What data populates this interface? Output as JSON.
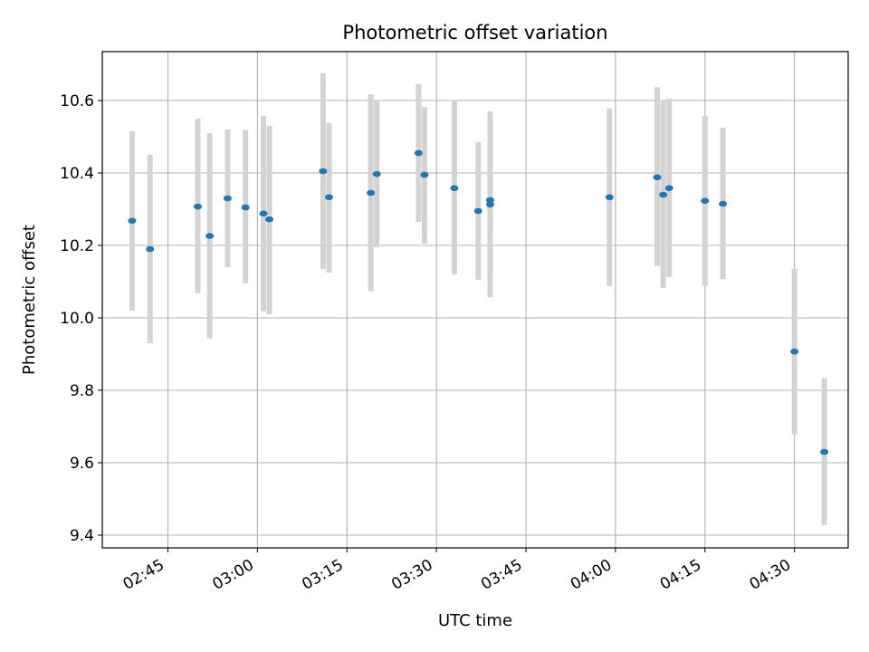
{
  "chart_data": {
    "type": "scatter",
    "title": "Photometric offset variation",
    "xlabel": "UTC time",
    "ylabel": "Photometric offset",
    "x_axis_kind": "time",
    "x_range": [
      "02:34",
      "04:39"
    ],
    "x_ticks": [
      "02:45",
      "03:00",
      "03:15",
      "03:30",
      "03:45",
      "04:00",
      "04:15",
      "04:30"
    ],
    "ylim": [
      9.365,
      10.735
    ],
    "y_ticks": [
      9.4,
      9.6,
      9.8,
      10.0,
      10.2,
      10.4,
      10.6
    ],
    "y_tick_labels": [
      "9.4",
      "9.6",
      "9.8",
      "10.0",
      "10.2",
      "10.4",
      "10.6"
    ],
    "grid": true,
    "point_color": "#1f77b4",
    "errorbar_color": "#d3d3d3",
    "points": [
      {
        "x": "02:39",
        "y": 10.268,
        "ymin": 10.02,
        "ymax": 10.515
      },
      {
        "x": "02:42",
        "y": 10.19,
        "ymin": 9.93,
        "ymax": 10.45
      },
      {
        "x": "02:50",
        "y": 10.307,
        "ymin": 10.068,
        "ymax": 10.55
      },
      {
        "x": "02:52",
        "y": 10.226,
        "ymin": 9.943,
        "ymax": 10.51
      },
      {
        "x": "02:55",
        "y": 10.33,
        "ymin": 10.14,
        "ymax": 10.52
      },
      {
        "x": "02:58",
        "y": 10.305,
        "ymin": 10.095,
        "ymax": 10.518
      },
      {
        "x": "03:01",
        "y": 10.288,
        "ymin": 10.018,
        "ymax": 10.558
      },
      {
        "x": "03:02",
        "y": 10.272,
        "ymin": 10.01,
        "ymax": 10.53
      },
      {
        "x": "03:11",
        "y": 10.405,
        "ymin": 10.135,
        "ymax": 10.675
      },
      {
        "x": "03:12",
        "y": 10.333,
        "ymin": 10.125,
        "ymax": 10.538
      },
      {
        "x": "03:19",
        "y": 10.345,
        "ymin": 10.073,
        "ymax": 10.617
      },
      {
        "x": "03:20",
        "y": 10.397,
        "ymin": 10.195,
        "ymax": 10.6
      },
      {
        "x": "03:27",
        "y": 10.455,
        "ymin": 10.265,
        "ymax": 10.645
      },
      {
        "x": "03:28",
        "y": 10.395,
        "ymin": 10.205,
        "ymax": 10.582
      },
      {
        "x": "03:33",
        "y": 10.358,
        "ymin": 10.12,
        "ymax": 10.6
      },
      {
        "x": "03:37",
        "y": 10.295,
        "ymin": 10.105,
        "ymax": 10.485
      },
      {
        "x": "03:39",
        "y": 10.313,
        "ymin": 10.057,
        "ymax": 10.57
      },
      {
        "x": "03:39",
        "y": 10.325,
        "ymin": 10.103,
        "ymax": 10.55
      },
      {
        "x": "03:59",
        "y": 10.333,
        "ymin": 10.088,
        "ymax": 10.578
      },
      {
        "x": "04:07",
        "y": 10.388,
        "ymin": 10.143,
        "ymax": 10.637
      },
      {
        "x": "04:08",
        "y": 10.34,
        "ymin": 10.083,
        "ymax": 10.6
      },
      {
        "x": "04:09",
        "y": 10.358,
        "ymin": 10.113,
        "ymax": 10.605
      },
      {
        "x": "04:15",
        "y": 10.323,
        "ymin": 10.088,
        "ymax": 10.558
      },
      {
        "x": "04:18",
        "y": 10.315,
        "ymin": 10.107,
        "ymax": 10.525
      },
      {
        "x": "04:30",
        "y": 9.907,
        "ymin": 9.678,
        "ymax": 10.135
      },
      {
        "x": "04:35",
        "y": 9.63,
        "ymin": 9.428,
        "ymax": 9.833
      }
    ]
  }
}
